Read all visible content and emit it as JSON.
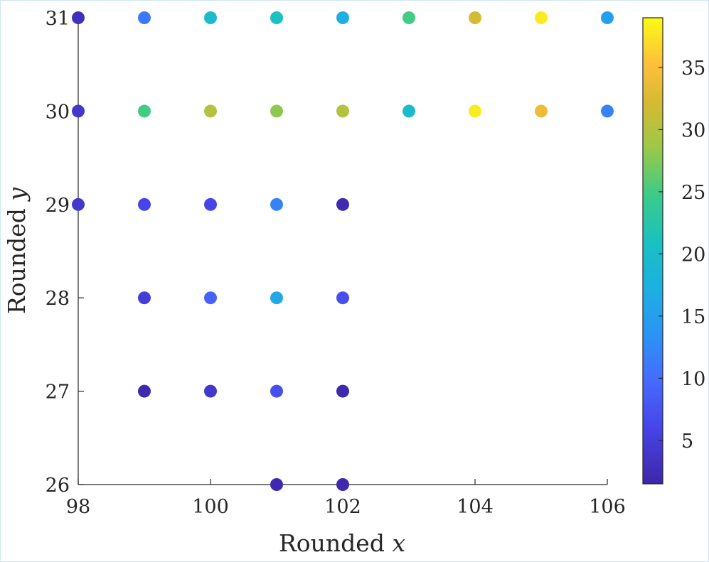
{
  "chart_data": {
    "type": "scatter",
    "xlabel": "Rounded x",
    "ylabel": "Rounded y",
    "xlim": [
      98,
      106
    ],
    "ylim": [
      26,
      31
    ],
    "xticks": [
      "98",
      "100",
      "102",
      "104",
      "106"
    ],
    "yticks": [
      "26",
      "27",
      "28",
      "29",
      "30",
      "31"
    ],
    "grid": false,
    "colormap": "parula",
    "colorbar": {
      "range": [
        1.5,
        39
      ],
      "ticks": [
        "5",
        "10",
        "15",
        "20",
        "25",
        "30",
        "35"
      ]
    },
    "points": [
      {
        "x": 98,
        "y": 31,
        "value": 3
      },
      {
        "x": 99,
        "y": 31,
        "value": 11
      },
      {
        "x": 100,
        "y": 31,
        "value": 20
      },
      {
        "x": 101,
        "y": 31,
        "value": 21
      },
      {
        "x": 102,
        "y": 31,
        "value": 17
      },
      {
        "x": 103,
        "y": 31,
        "value": 25
      },
      {
        "x": 104,
        "y": 31,
        "value": 32
      },
      {
        "x": 105,
        "y": 31,
        "value": 38
      },
      {
        "x": 106,
        "y": 31,
        "value": 15
      },
      {
        "x": 98,
        "y": 30,
        "value": 4
      },
      {
        "x": 99,
        "y": 30,
        "value": 25
      },
      {
        "x": 100,
        "y": 30,
        "value": 30
      },
      {
        "x": 101,
        "y": 30,
        "value": 28
      },
      {
        "x": 102,
        "y": 30,
        "value": 30
      },
      {
        "x": 103,
        "y": 30,
        "value": 20
      },
      {
        "x": 104,
        "y": 30,
        "value": 38
      },
      {
        "x": 105,
        "y": 30,
        "value": 34
      },
      {
        "x": 106,
        "y": 30,
        "value": 12
      },
      {
        "x": 98,
        "y": 29,
        "value": 4
      },
      {
        "x": 99,
        "y": 29,
        "value": 6
      },
      {
        "x": 100,
        "y": 29,
        "value": 6
      },
      {
        "x": 101,
        "y": 29,
        "value": 12
      },
      {
        "x": 102,
        "y": 29,
        "value": 2
      },
      {
        "x": 99,
        "y": 28,
        "value": 5
      },
      {
        "x": 100,
        "y": 28,
        "value": 9
      },
      {
        "x": 101,
        "y": 28,
        "value": 16
      },
      {
        "x": 102,
        "y": 28,
        "value": 7
      },
      {
        "x": 99,
        "y": 27,
        "value": 2
      },
      {
        "x": 100,
        "y": 27,
        "value": 4
      },
      {
        "x": 101,
        "y": 27,
        "value": 7
      },
      {
        "x": 102,
        "y": 27,
        "value": 2
      },
      {
        "x": 101,
        "y": 26,
        "value": 2
      },
      {
        "x": 102,
        "y": 26,
        "value": 2
      }
    ]
  }
}
